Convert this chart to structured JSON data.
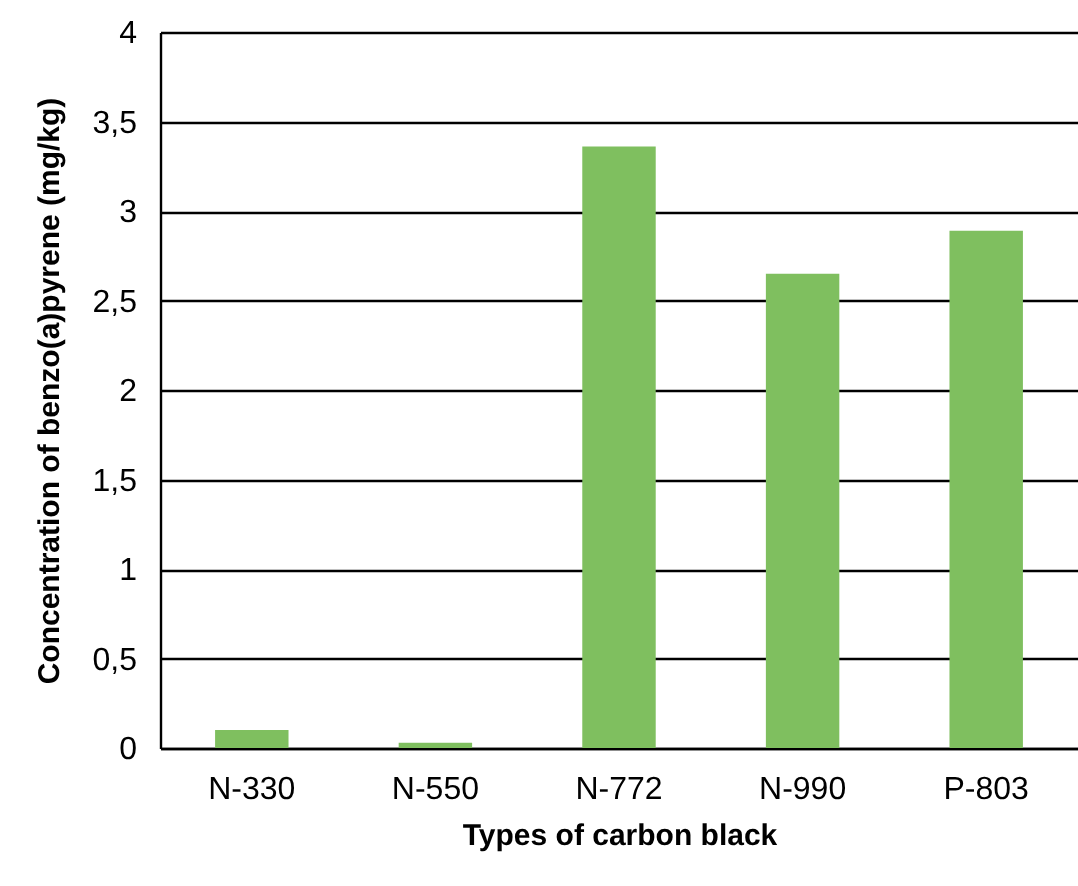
{
  "chart_data": {
    "type": "bar",
    "xlabel": "Types of carbon black",
    "ylabel": "Concentration of benzo(a)pyrene (mg/kg)",
    "categories": [
      "N-330",
      "N-550",
      "N-772",
      "N-990",
      "P-803"
    ],
    "values": [
      0.1,
      0.03,
      3.36,
      2.65,
      2.89
    ],
    "color": "#7fbf5f",
    "ylim": [
      0,
      4
    ],
    "yticks": [
      0,
      {
        "value": 0.5,
        "label": "0,5"
      },
      1,
      {
        "value": 1.5,
        "label": "1,5"
      },
      2,
      {
        "value": 2.5,
        "label": "2,5"
      },
      3,
      {
        "value": 3.5,
        "label": "3,5"
      },
      4
    ],
    "grid": "y"
  }
}
